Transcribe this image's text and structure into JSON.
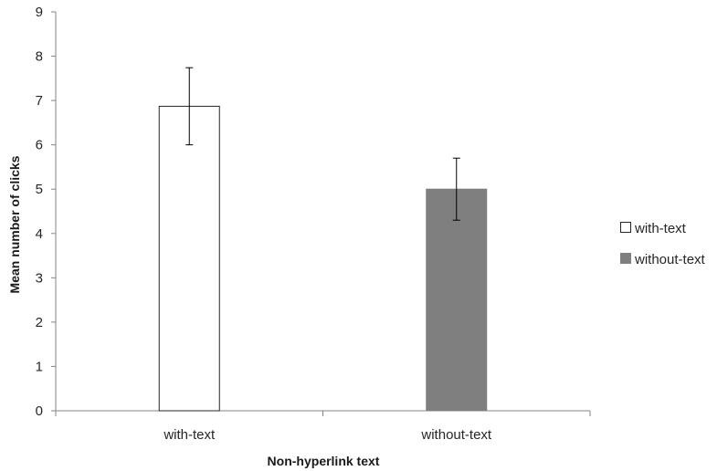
{
  "chart_data": {
    "type": "bar",
    "categories": [
      "with-text",
      "without-text"
    ],
    "series": [
      {
        "name": "with-text",
        "values": [
          6.87,
          null
        ],
        "errors": [
          0.87,
          null
        ],
        "color": "#ffffff",
        "stroke": "#262626"
      },
      {
        "name": "without-text",
        "values": [
          null,
          5.0
        ],
        "errors": [
          null,
          0.7
        ],
        "color": "#7f7f7f",
        "stroke": "#7f7f7f"
      }
    ],
    "xlabel": "Non-hyperlink text",
    "ylabel": "Mean number of clicks",
    "ylim": [
      0,
      9
    ],
    "yticks": [
      "0",
      "1",
      "2",
      "3",
      "4",
      "5",
      "6",
      "7",
      "8",
      "9"
    ],
    "grid": false,
    "legend_position": "right"
  }
}
